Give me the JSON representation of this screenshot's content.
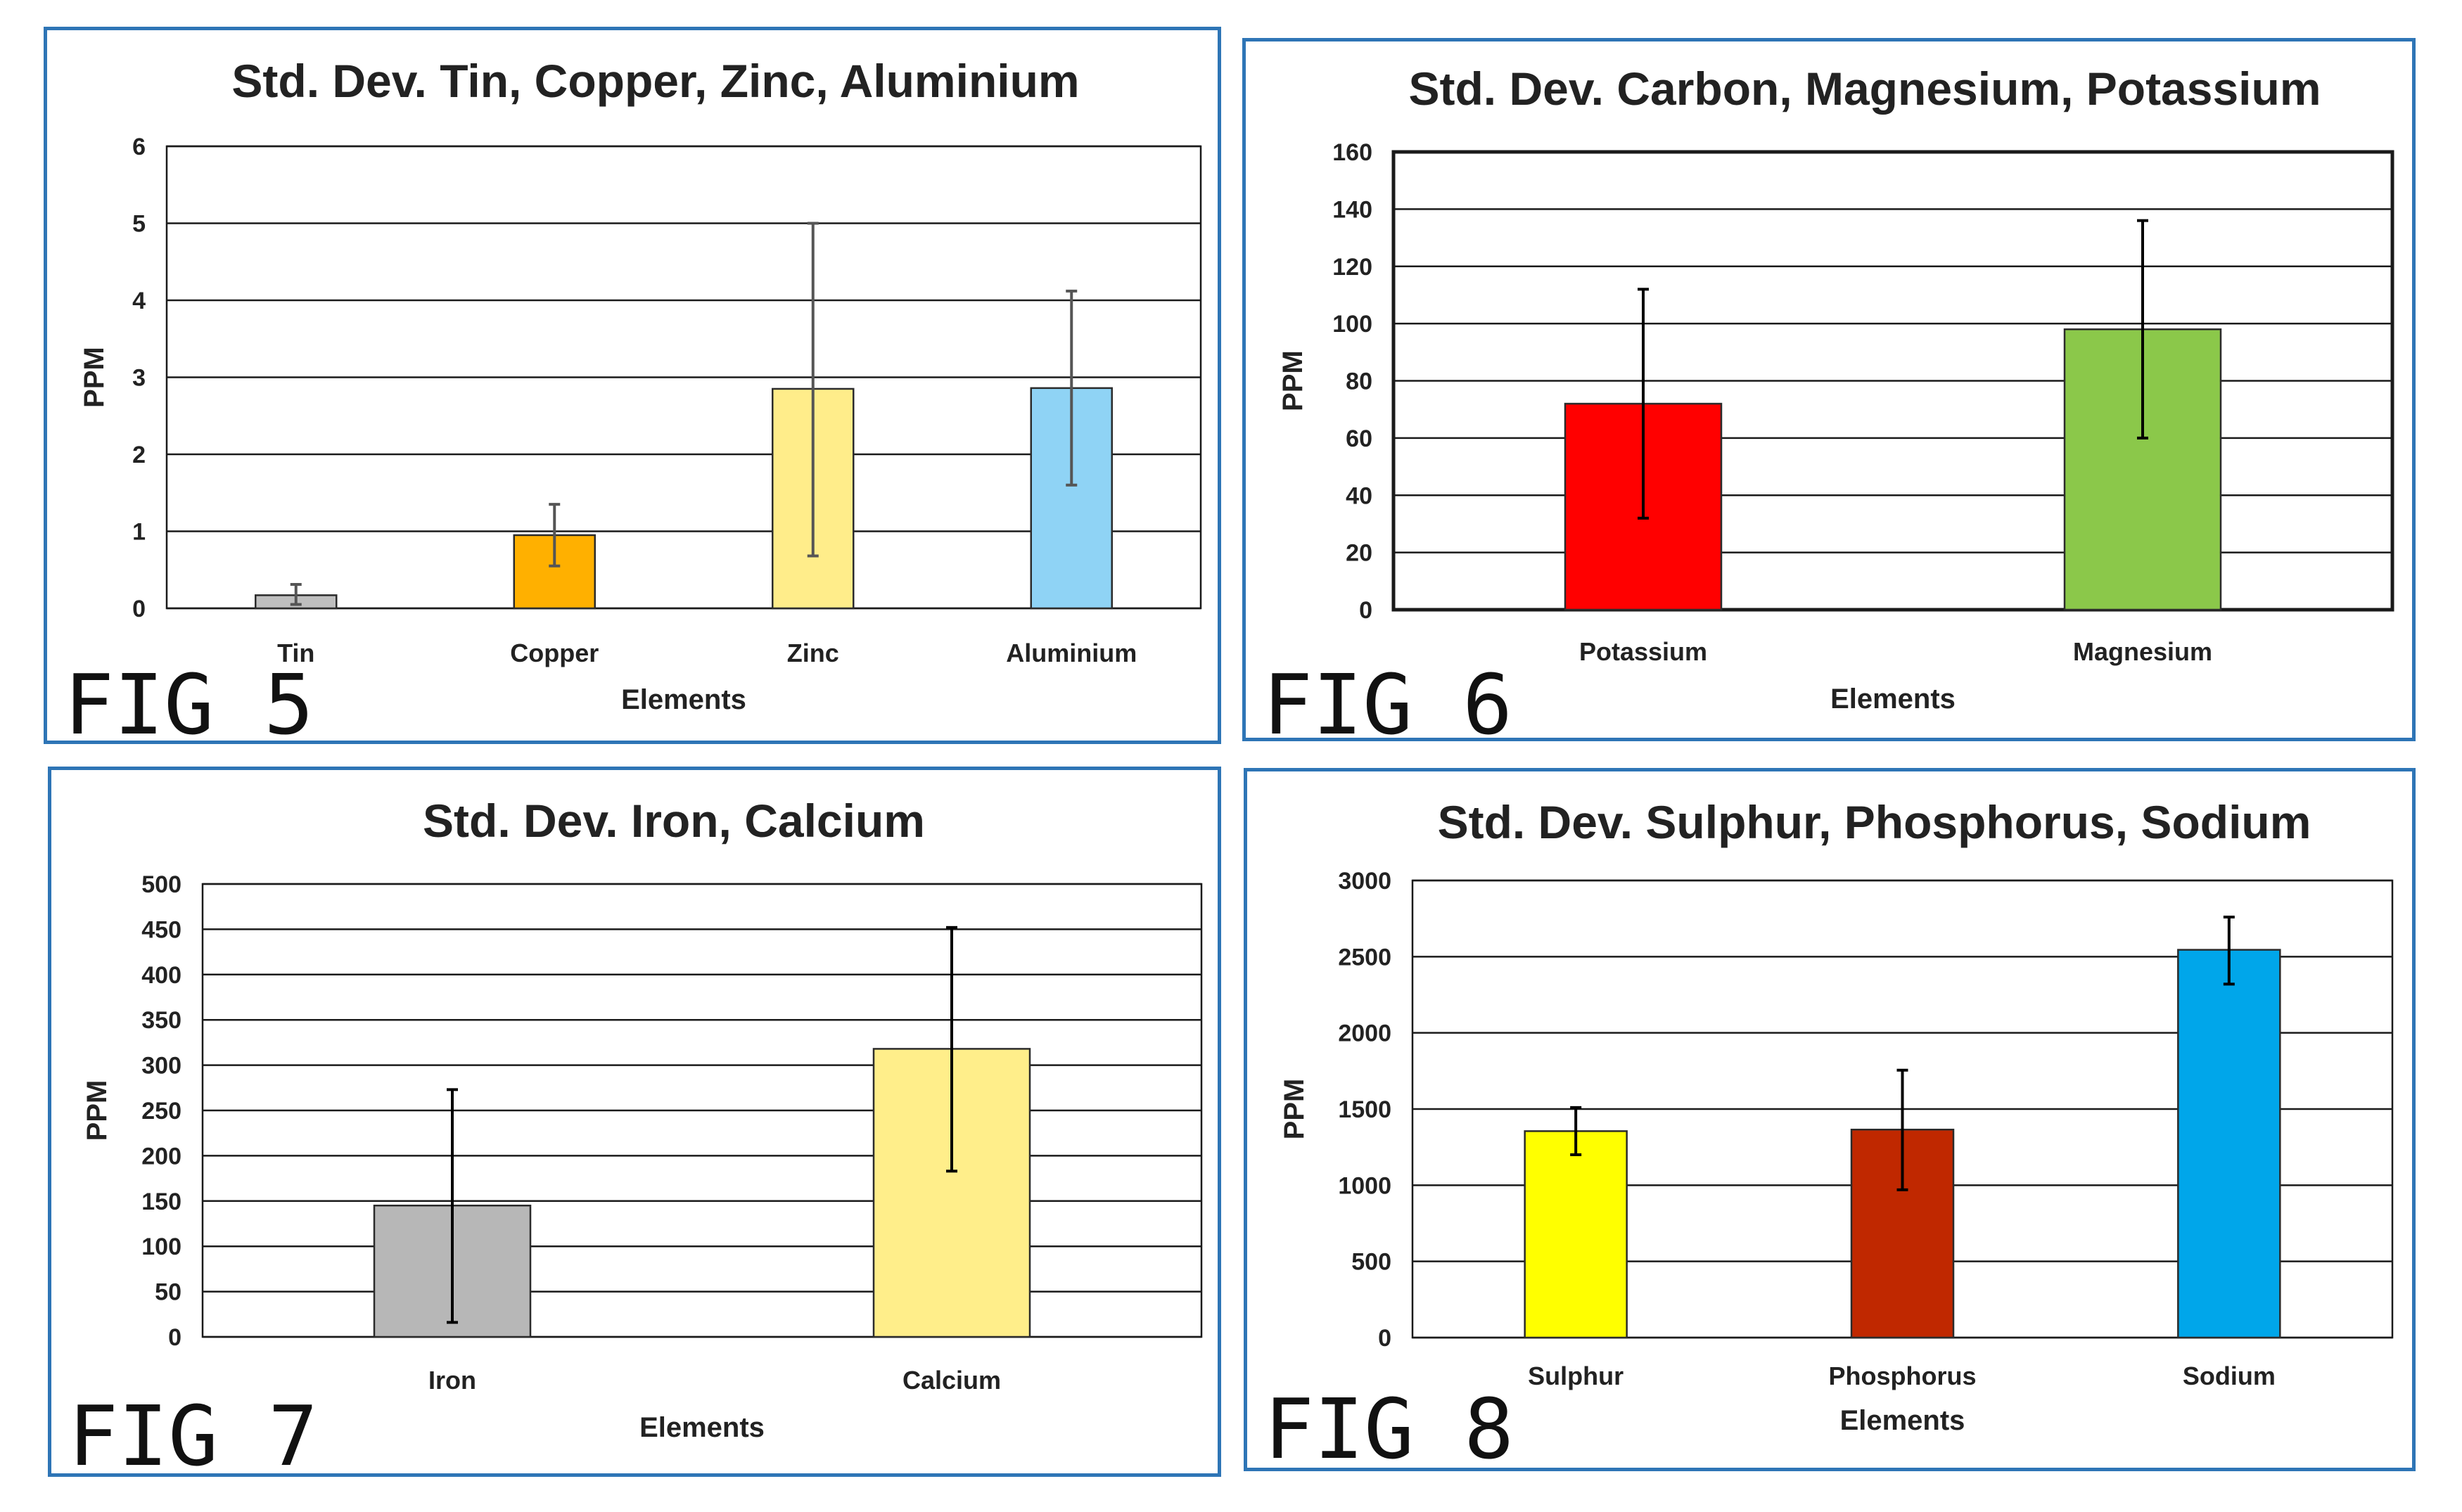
{
  "figures": [
    {
      "label": "FIG 5"
    },
    {
      "label": "FIG 6"
    },
    {
      "label": "FIG 7"
    },
    {
      "label": "FIG 8"
    }
  ],
  "chart_data": [
    {
      "type": "bar",
      "title": "Std. Dev. Tin, Copper, Zinc, Aluminium",
      "xlabel": "Elements",
      "ylabel": "PPM",
      "categories": [
        "Tin",
        "Copper",
        "Zinc",
        "Aluminium"
      ],
      "values": [
        0.17,
        0.95,
        2.85,
        2.86
      ],
      "error_low": [
        0.05,
        0.55,
        0.68,
        1.6
      ],
      "error_high": [
        0.31,
        1.35,
        5.0,
        4.12
      ],
      "colors": [
        "#bfbfbf",
        "#ffb000",
        "#ffed8a",
        "#8fd3f5"
      ],
      "ylim": [
        0,
        6
      ],
      "yticks": [
        0,
        1,
        2,
        3,
        4,
        5,
        6
      ],
      "grid": true
    },
    {
      "type": "bar",
      "title": "Std. Dev. Carbon, Magnesium, Potassium",
      "xlabel": "Elements",
      "ylabel": "PPM",
      "categories": [
        "Potassium",
        "Magnesium"
      ],
      "values": [
        72,
        98
      ],
      "error_low": [
        32,
        60
      ],
      "error_high": [
        112,
        136
      ],
      "colors": [
        "#ff0000",
        "#8bc84a"
      ],
      "ylim": [
        0,
        160
      ],
      "yticks": [
        0,
        20,
        40,
        60,
        80,
        100,
        120,
        140,
        160
      ],
      "grid": true
    },
    {
      "type": "bar",
      "title": "Std. Dev. Iron, Calcium",
      "xlabel": "Elements",
      "ylabel": "PPM",
      "categories": [
        "Iron",
        "Calcium"
      ],
      "values": [
        145,
        318
      ],
      "error_low": [
        16,
        183
      ],
      "error_high": [
        273,
        452
      ],
      "colors": [
        "#b7b7b7",
        "#ffee8a"
      ],
      "ylim": [
        0,
        500
      ],
      "yticks": [
        0,
        50,
        100,
        150,
        200,
        250,
        300,
        350,
        400,
        450,
        500
      ],
      "grid": true
    },
    {
      "type": "bar",
      "title": "Std. Dev. Sulphur, Phosphorus, Sodium",
      "xlabel": "Elements",
      "ylabel": "PPM",
      "categories": [
        "Sulphur",
        "Phosphorus",
        "Sodium"
      ],
      "values": [
        1355,
        1365,
        2545
      ],
      "error_low": [
        1200,
        970,
        2320
      ],
      "error_high": [
        1510,
        1755,
        2760
      ],
      "colors": [
        "#ffff00",
        "#c02800",
        "#00a6ea"
      ],
      "ylim": [
        0,
        3000
      ],
      "yticks": [
        0,
        500,
        1000,
        1500,
        2000,
        2500,
        3000
      ],
      "grid": true
    }
  ]
}
